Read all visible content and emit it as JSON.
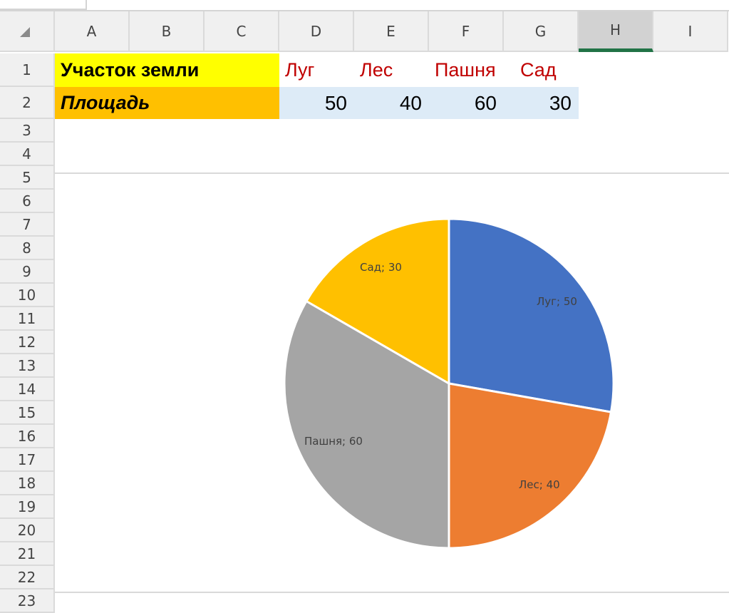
{
  "columns": [
    "A",
    "B",
    "C",
    "D",
    "E",
    "F",
    "G",
    "H",
    "I"
  ],
  "selected_column": "H",
  "rows": [
    "1",
    "2",
    "3",
    "4",
    "5",
    "6",
    "7",
    "8",
    "9",
    "10",
    "11",
    "12",
    "13",
    "14",
    "15",
    "16",
    "17",
    "18",
    "19",
    "20",
    "21",
    "22",
    "23"
  ],
  "cells": {
    "A1": "Участок земли",
    "A2": "Площадь",
    "D1": "Луг",
    "E1": "Лес",
    "F1": "Пашня",
    "G1": "Сад",
    "D2": "50",
    "E2": "40",
    "F2": "60",
    "G2": "30"
  },
  "colors": {
    "A1_fill": "#ffff00",
    "A2_fill": "#ffc000",
    "header_text": "#c00000",
    "values_fill": "#ddebf7",
    "selected_col_accent": "#217346"
  },
  "chart_data": {
    "type": "pie",
    "categories": [
      "Луг",
      "Лес",
      "Пашня",
      "Сад"
    ],
    "values": [
      50,
      40,
      60,
      30
    ],
    "data_labels": [
      "Луг; 50",
      "Лес; 40",
      "Пашня; 60",
      "Сад; 30"
    ],
    "colors": [
      "#4472c4",
      "#ed7d31",
      "#a5a5a5",
      "#ffc000"
    ],
    "start": "top, clockwise",
    "legend": "none"
  }
}
